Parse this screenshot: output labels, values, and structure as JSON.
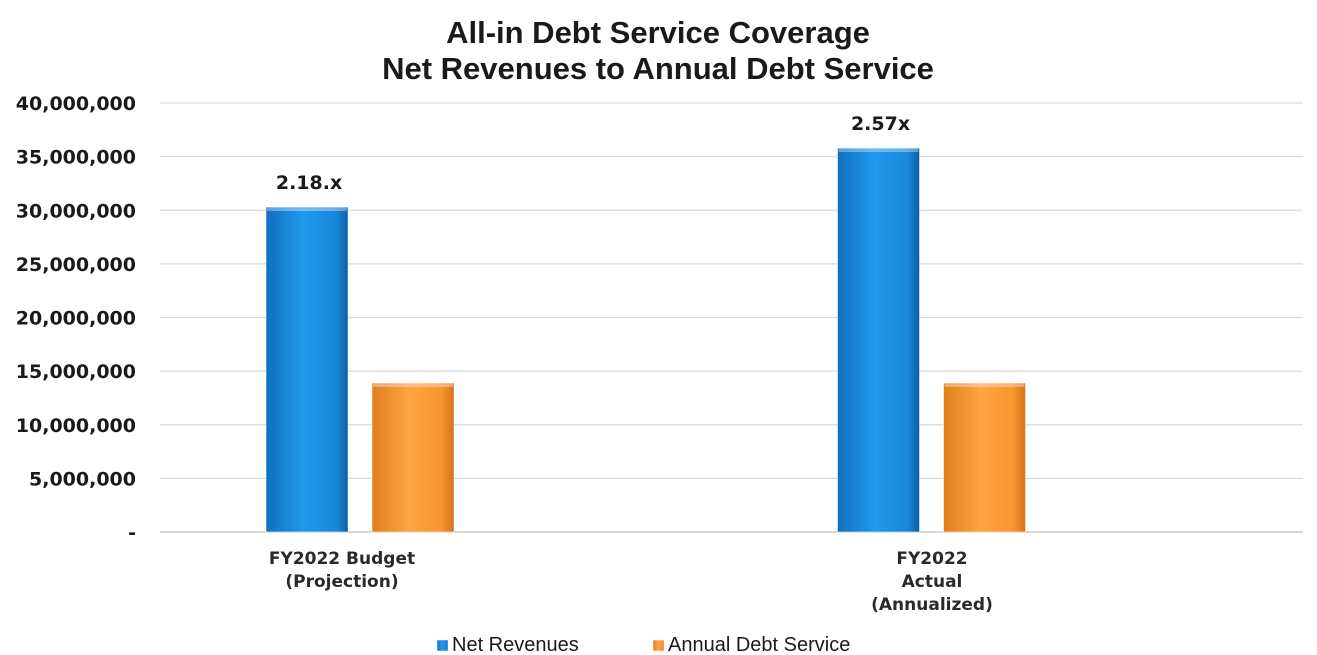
{
  "chart_data": {
    "type": "bar",
    "title": [
      "All-in Debt Service Coverage",
      "Net Revenues to Annual Debt Service"
    ],
    "categories": [
      [
        "FY2022 Budget",
        "(Projection)"
      ],
      [
        "FY2022",
        "Actual",
        "(Annualized)"
      ]
    ],
    "series": [
      {
        "name": "Net Revenues",
        "color": "#1c8ee0",
        "values": [
          30300000,
          35800000
        ],
        "data_labels": [
          "2.18.x",
          "2.57x"
        ]
      },
      {
        "name": "Annual Debt Service",
        "color": "#f99a35",
        "values": [
          13900000,
          13900000
        ],
        "data_labels": [
          "",
          ""
        ]
      }
    ],
    "ylim": [
      0,
      40000000
    ],
    "yticks": [
      0,
      5000000,
      10000000,
      15000000,
      20000000,
      25000000,
      30000000,
      35000000,
      40000000
    ],
    "ytick_labels": [
      "-",
      "5,000,000",
      "10,000,000",
      "15,000,000",
      "20,000,000",
      "25,000,000",
      "30,000,000",
      "35,000,000",
      "40,000,000"
    ],
    "xlabel": "",
    "ylabel": "",
    "grid": true,
    "legend_position": "bottom"
  }
}
